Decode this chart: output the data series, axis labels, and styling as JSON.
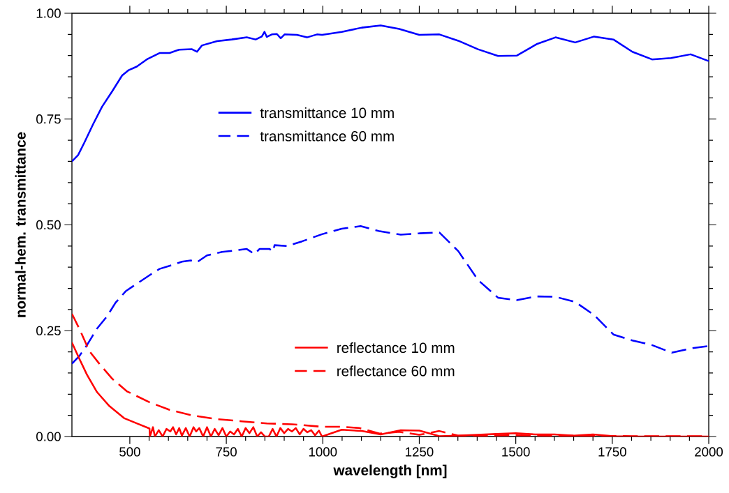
{
  "chart_data": {
    "type": "line",
    "xlabel": "wavelength [nm]",
    "ylabel": "normal-hem. transmittance",
    "xlim": [
      350,
      2000
    ],
    "ylim": [
      0,
      1
    ],
    "xticks": [
      500,
      750,
      1000,
      1250,
      1500,
      1750,
      2000
    ],
    "yticks": [
      {
        "value": 0,
        "label": "0.00"
      },
      {
        "value": 0.25,
        "label": "0.25"
      },
      {
        "value": 0.5,
        "label": "0.50"
      },
      {
        "value": 0.75,
        "label": "0.75"
      },
      {
        "value": 1,
        "label": "1.00"
      }
    ],
    "grid": false,
    "legend": "center",
    "marker": "none",
    "series": [
      {
        "name": "transmittance 10 mm",
        "color": "#0000ff",
        "line_style": "solid",
        "x": [
          350,
          366,
          382,
          405,
          428,
          454,
          480,
          496,
          518,
          544,
          577,
          603,
          628,
          661,
          674,
          687,
          726,
          764,
          803,
          826,
          842,
          849,
          855,
          868,
          881,
          891,
          901,
          933,
          959,
          985,
          998,
          1049,
          1101,
          1150,
          1198,
          1250,
          1302,
          1351,
          1402,
          1454,
          1503,
          1554,
          1603,
          1654,
          1703,
          1753,
          1802,
          1853,
          1902,
          1953,
          2000
        ],
        "values": [
          0.65,
          0.665,
          0.694,
          0.738,
          0.779,
          0.815,
          0.853,
          0.865,
          0.874,
          0.891,
          0.906,
          0.906,
          0.914,
          0.915,
          0.909,
          0.924,
          0.934,
          0.938,
          0.943,
          0.938,
          0.945,
          0.956,
          0.944,
          0.95,
          0.951,
          0.941,
          0.95,
          0.949,
          0.943,
          0.95,
          0.949,
          0.956,
          0.966,
          0.971,
          0.963,
          0.949,
          0.95,
          0.935,
          0.915,
          0.899,
          0.9,
          0.927,
          0.943,
          0.931,
          0.945,
          0.938,
          0.909,
          0.891,
          0.894,
          0.903,
          0.887
        ]
      },
      {
        "name": "transmittance 60 mm",
        "color": "#0000ff",
        "line_style": "dashed",
        "x": [
          350,
          369,
          389,
          415,
          441,
          463,
          489,
          518,
          551,
          577,
          609,
          635,
          658,
          674,
          700,
          739,
          777,
          803,
          823,
          836,
          862,
          871,
          875,
          907,
          946,
          998,
          1049,
          1098,
          1147,
          1202,
          1250,
          1302,
          1351,
          1402,
          1454,
          1502,
          1554,
          1603,
          1654,
          1703,
          1753,
          1802,
          1853,
          1904,
          1953,
          2000
        ],
        "values": [
          0.172,
          0.19,
          0.216,
          0.255,
          0.284,
          0.316,
          0.343,
          0.361,
          0.381,
          0.396,
          0.405,
          0.413,
          0.416,
          0.412,
          0.428,
          0.436,
          0.44,
          0.443,
          0.431,
          0.443,
          0.443,
          0.437,
          0.452,
          0.45,
          0.461,
          0.478,
          0.491,
          0.497,
          0.485,
          0.477,
          0.48,
          0.482,
          0.438,
          0.37,
          0.328,
          0.322,
          0.331,
          0.33,
          0.318,
          0.287,
          0.241,
          0.227,
          0.216,
          0.198,
          0.208,
          0.214
        ]
      },
      {
        "name": "reflectance 10 mm",
        "color": "#ff0000",
        "line_style": "solid",
        "x": [
          350,
          369,
          389,
          415,
          447,
          486,
          518,
          551,
          552,
          560,
          565,
          575,
          585,
          595,
          605,
          612,
          620,
          628,
          635,
          645,
          655,
          665,
          672,
          680,
          690,
          700,
          710,
          720,
          730,
          740,
          750,
          760,
          770,
          780,
          790,
          800,
          810,
          820,
          830,
          840,
          850,
          860,
          870,
          880,
          890,
          900,
          910,
          920,
          930,
          940,
          950,
          960,
          970,
          980,
          990,
          998,
          1049,
          1101,
          1150,
          1202,
          1250,
          1302,
          1351,
          1400,
          1450,
          1500,
          1550,
          1600,
          1650,
          1700,
          1750,
          1800,
          2000
        ],
        "values": [
          0.222,
          0.184,
          0.146,
          0.105,
          0.072,
          0.043,
          0.031,
          0.019,
          0.0,
          0.022,
          0.0,
          0.015,
          0.0,
          0.018,
          0.012,
          0.022,
          0.005,
          0.02,
          0.002,
          0.02,
          0.0,
          0.022,
          0.012,
          0.02,
          0.0,
          0.022,
          0.0,
          0.018,
          0.003,
          0.02,
          0.0,
          0.012,
          0.005,
          0.018,
          0.0,
          0.02,
          0.008,
          0.022,
          0.0,
          0.01,
          0.0,
          0.0,
          0.018,
          0.0,
          0.02,
          0.008,
          0.018,
          0.012,
          0.02,
          0.005,
          0.018,
          0.01,
          0.015,
          0.003,
          0.014,
          0.0,
          0.016,
          0.013,
          0.005,
          0.015,
          0.014,
          0.001,
          0.002,
          0.004,
          0.006,
          0.008,
          0.005,
          0.005,
          0.002,
          0.005,
          0.001,
          0.0,
          0.0
        ]
      },
      {
        "name": "reflectance 60 mm",
        "color": "#ff0000",
        "line_style": "dashed",
        "x": [
          350,
          369,
          395,
          421,
          454,
          492,
          551,
          603,
          661,
          726,
          790,
          855,
          920,
          998,
          1049,
          1095,
          1147,
          1198,
          1250,
          1302,
          1351,
          1400,
          1500,
          1600,
          1700,
          1800,
          1900,
          2000
        ],
        "values": [
          0.29,
          0.255,
          0.202,
          0.172,
          0.137,
          0.107,
          0.081,
          0.063,
          0.05,
          0.041,
          0.036,
          0.031,
          0.029,
          0.023,
          0.023,
          0.02,
          0.007,
          0.011,
          0.004,
          0.013,
          0.002,
          0.002,
          0.003,
          0.002,
          0.002,
          0.001,
          0.001,
          0.001
        ]
      }
    ]
  }
}
